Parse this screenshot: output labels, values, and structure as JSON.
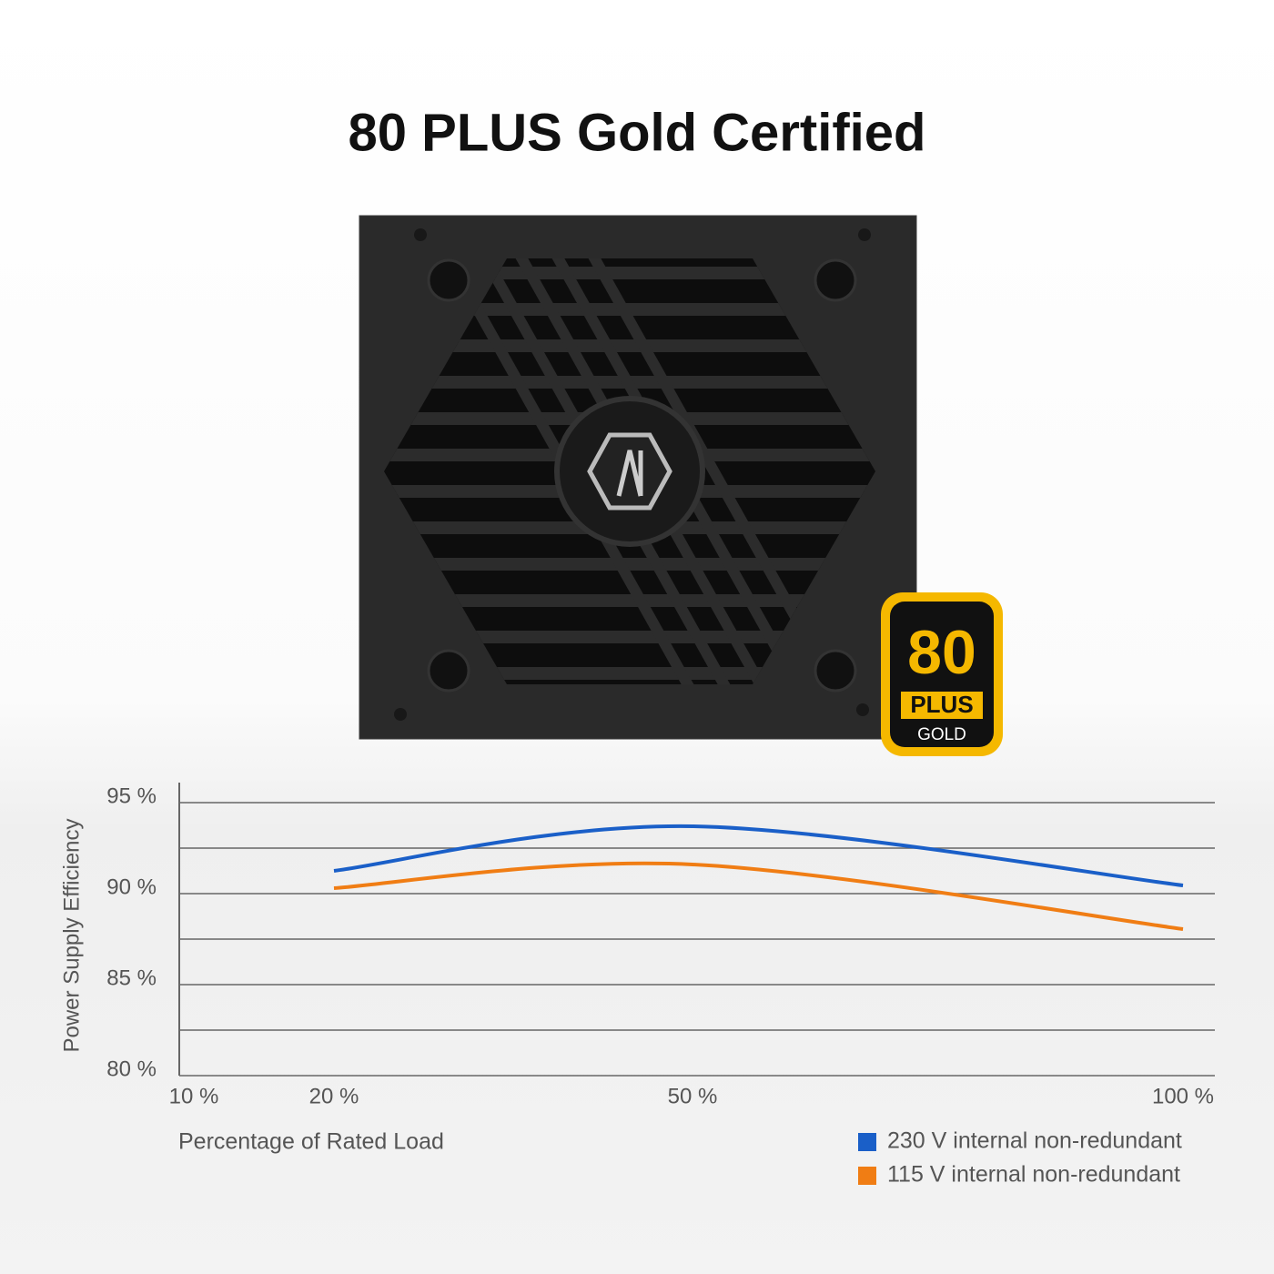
{
  "chart_data": {
    "type": "line",
    "title": "80 PLUS Gold Certified",
    "x_label": "Percentage of Rated Load",
    "y_label": "Power Supply Efficiency",
    "categories": [
      "10 %",
      "20 %",
      "50 %",
      "100 %"
    ],
    "series": [
      {
        "name": "230 V internal non-redundant",
        "color": "#1a5fc8",
        "values": [
          null,
          91.25,
          93.7,
          90.45
        ]
      },
      {
        "name": "115 V internal non-redundant",
        "color": "#f07d14",
        "values": [
          null,
          90.3,
          91.6,
          88.05
        ]
      }
    ],
    "ylim": [
      80,
      95
    ],
    "yticks": [
      {
        "value": 80,
        "label": "80 %"
      },
      {
        "value": 85,
        "label": "85 %"
      },
      {
        "value": 90,
        "label": "90 %"
      },
      {
        "value": 95,
        "label": "95 %"
      }
    ],
    "minor_grid": [
      82.5,
      87.5,
      92.5
    ],
    "grid": true,
    "legend": "bottom-right"
  },
  "badge": {
    "number": "80",
    "plus": "PLUS",
    "tier": "GOLD"
  }
}
